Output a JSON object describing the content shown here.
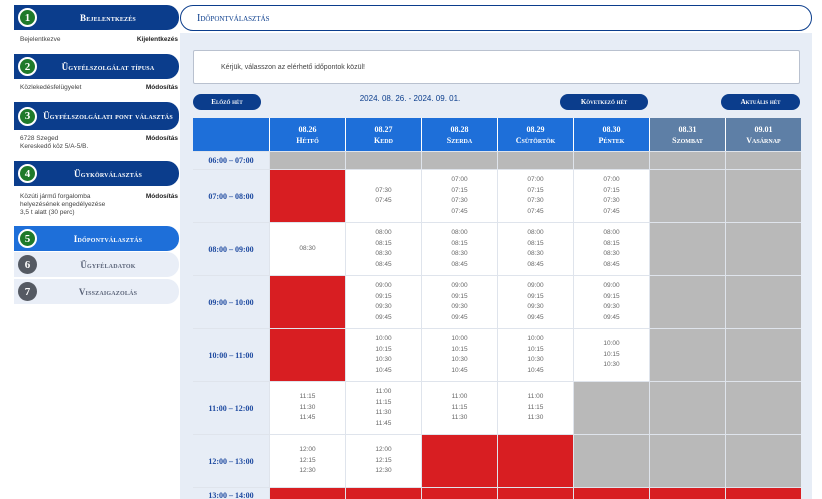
{
  "sidebar": {
    "steps": [
      {
        "num": "1",
        "label": "Bejelentkezés"
      },
      {
        "num": "2",
        "label": "Ügyfélszolgálat típusa"
      },
      {
        "num": "3",
        "label": "Ügyfélszolgálati pont választás"
      },
      {
        "num": "4",
        "label": "Ügykörválasztás"
      },
      {
        "num": "5",
        "label": "Időpontválasztás"
      },
      {
        "num": "6",
        "label": "Ügyféladatok"
      },
      {
        "num": "7",
        "label": "Visszaigazolás"
      }
    ],
    "subs": {
      "login_text": "Bejelentkezve",
      "login_action": "Kijelentkezés",
      "type_text": "Közlekedésfelügyelet",
      "type_action": "Módosítás",
      "point_line1": "6728 Szeged",
      "point_line2": "Kereskedő köz 5/A-5/B.",
      "point_action": "Módosítás",
      "case_line1": "Közúti jármű forgalomba helyezésének engedélyezése",
      "case_line2": "3,5 t alatt (30 perc)",
      "case_action": "Módosítás"
    }
  },
  "main": {
    "title": "Időpontválasztás",
    "notice": "Kérjük, válasszon az elérhető időpontok közül!",
    "prev_week": "Előző hét",
    "next_week": "Következő hét",
    "current_week": "Aktuális hét",
    "range": "2024. 08. 26. - 2024. 09. 01."
  },
  "calendar": {
    "days": [
      {
        "date": "08.26",
        "name": "Hétfő"
      },
      {
        "date": "08.27",
        "name": "Kedd"
      },
      {
        "date": "08.28",
        "name": "Szerda"
      },
      {
        "date": "08.29",
        "name": "Csütörtök"
      },
      {
        "date": "08.30",
        "name": "Péntek"
      },
      {
        "date": "08.31",
        "name": "Szombat"
      },
      {
        "date": "09.01",
        "name": "Vasárnap"
      }
    ],
    "rows": [
      {
        "time": "06:00 – 07:00",
        "cells": [
          {
            "s": "closed"
          },
          {
            "s": "closed"
          },
          {
            "s": "closed"
          },
          {
            "s": "closed"
          },
          {
            "s": "closed"
          },
          {
            "s": "closed"
          },
          {
            "s": "closed"
          }
        ]
      },
      {
        "time": "07:00 – 08:00",
        "cells": [
          {
            "s": "busy"
          },
          {
            "s": "free",
            "slots": [
              "07:30",
              "07:45"
            ]
          },
          {
            "s": "free",
            "slots": [
              "07:00",
              "07:15",
              "07:30",
              "07:45"
            ]
          },
          {
            "s": "free",
            "slots": [
              "07:00",
              "07:15",
              "07:30",
              "07:45"
            ]
          },
          {
            "s": "free",
            "slots": [
              "07:00",
              "07:15",
              "07:30",
              "07:45"
            ]
          },
          {
            "s": "closed"
          },
          {
            "s": "closed"
          }
        ]
      },
      {
        "time": "08:00 – 09:00",
        "cells": [
          {
            "s": "free",
            "slots": [
              "08:30"
            ]
          },
          {
            "s": "free",
            "slots": [
              "08:00",
              "08:15",
              "08:30",
              "08:45"
            ]
          },
          {
            "s": "free",
            "slots": [
              "08:00",
              "08:15",
              "08:30",
              "08:45"
            ]
          },
          {
            "s": "free",
            "slots": [
              "08:00",
              "08:15",
              "08:30",
              "08:45"
            ]
          },
          {
            "s": "free",
            "slots": [
              "08:00",
              "08:15",
              "08:30",
              "08:45"
            ]
          },
          {
            "s": "closed"
          },
          {
            "s": "closed"
          }
        ]
      },
      {
        "time": "09:00 – 10:00",
        "cells": [
          {
            "s": "busy"
          },
          {
            "s": "free",
            "slots": [
              "09:00",
              "09:15",
              "09:30",
              "09:45"
            ]
          },
          {
            "s": "free",
            "slots": [
              "09:00",
              "09:15",
              "09:30",
              "09:45"
            ]
          },
          {
            "s": "free",
            "slots": [
              "09:00",
              "09:15",
              "09:30",
              "09:45"
            ]
          },
          {
            "s": "free",
            "slots": [
              "09:00",
              "09:15",
              "09:30",
              "09:45"
            ]
          },
          {
            "s": "closed"
          },
          {
            "s": "closed"
          }
        ]
      },
      {
        "time": "10:00 – 11:00",
        "cells": [
          {
            "s": "busy"
          },
          {
            "s": "free",
            "slots": [
              "10:00",
              "10:15",
              "10:30",
              "10:45"
            ]
          },
          {
            "s": "free",
            "slots": [
              "10:00",
              "10:15",
              "10:30",
              "10:45"
            ]
          },
          {
            "s": "free",
            "slots": [
              "10:00",
              "10:15",
              "10:30",
              "10:45"
            ]
          },
          {
            "s": "free",
            "slots": [
              "10:00",
              "10:15",
              "10:30"
            ]
          },
          {
            "s": "closed"
          },
          {
            "s": "closed"
          }
        ]
      },
      {
        "time": "11:00 – 12:00",
        "cells": [
          {
            "s": "free",
            "slots": [
              "11:15",
              "11:30",
              "11:45"
            ]
          },
          {
            "s": "free",
            "slots": [
              "11:00",
              "11:15",
              "11:30",
              "11:45"
            ]
          },
          {
            "s": "free",
            "slots": [
              "11:00",
              "11:15",
              "11:30"
            ]
          },
          {
            "s": "free",
            "slots": [
              "11:00",
              "11:15",
              "11:30"
            ]
          },
          {
            "s": "closed"
          },
          {
            "s": "closed"
          },
          {
            "s": "closed"
          }
        ]
      },
      {
        "time": "12:00 – 13:00",
        "cells": [
          {
            "s": "free",
            "slots": [
              "12:00",
              "12:15",
              "12:30"
            ]
          },
          {
            "s": "free",
            "slots": [
              "12:00",
              "12:15",
              "12:30"
            ]
          },
          {
            "s": "busy"
          },
          {
            "s": "busy"
          },
          {
            "s": "closed"
          },
          {
            "s": "closed"
          },
          {
            "s": "closed"
          }
        ]
      },
      {
        "time": "13:00 – 14:00",
        "cells": [
          {
            "s": "busy"
          },
          {
            "s": "busy"
          },
          {
            "s": "busy"
          },
          {
            "s": "busy"
          },
          {
            "s": "busy"
          },
          {
            "s": "busy"
          },
          {
            "s": "busy"
          }
        ]
      }
    ]
  },
  "colors": {
    "navy": "#0b3d8c",
    "blue": "#1e6fd9",
    "busy": "#d81e22",
    "closed": "#b9b9b9",
    "weekend": "#5e7fa6"
  }
}
